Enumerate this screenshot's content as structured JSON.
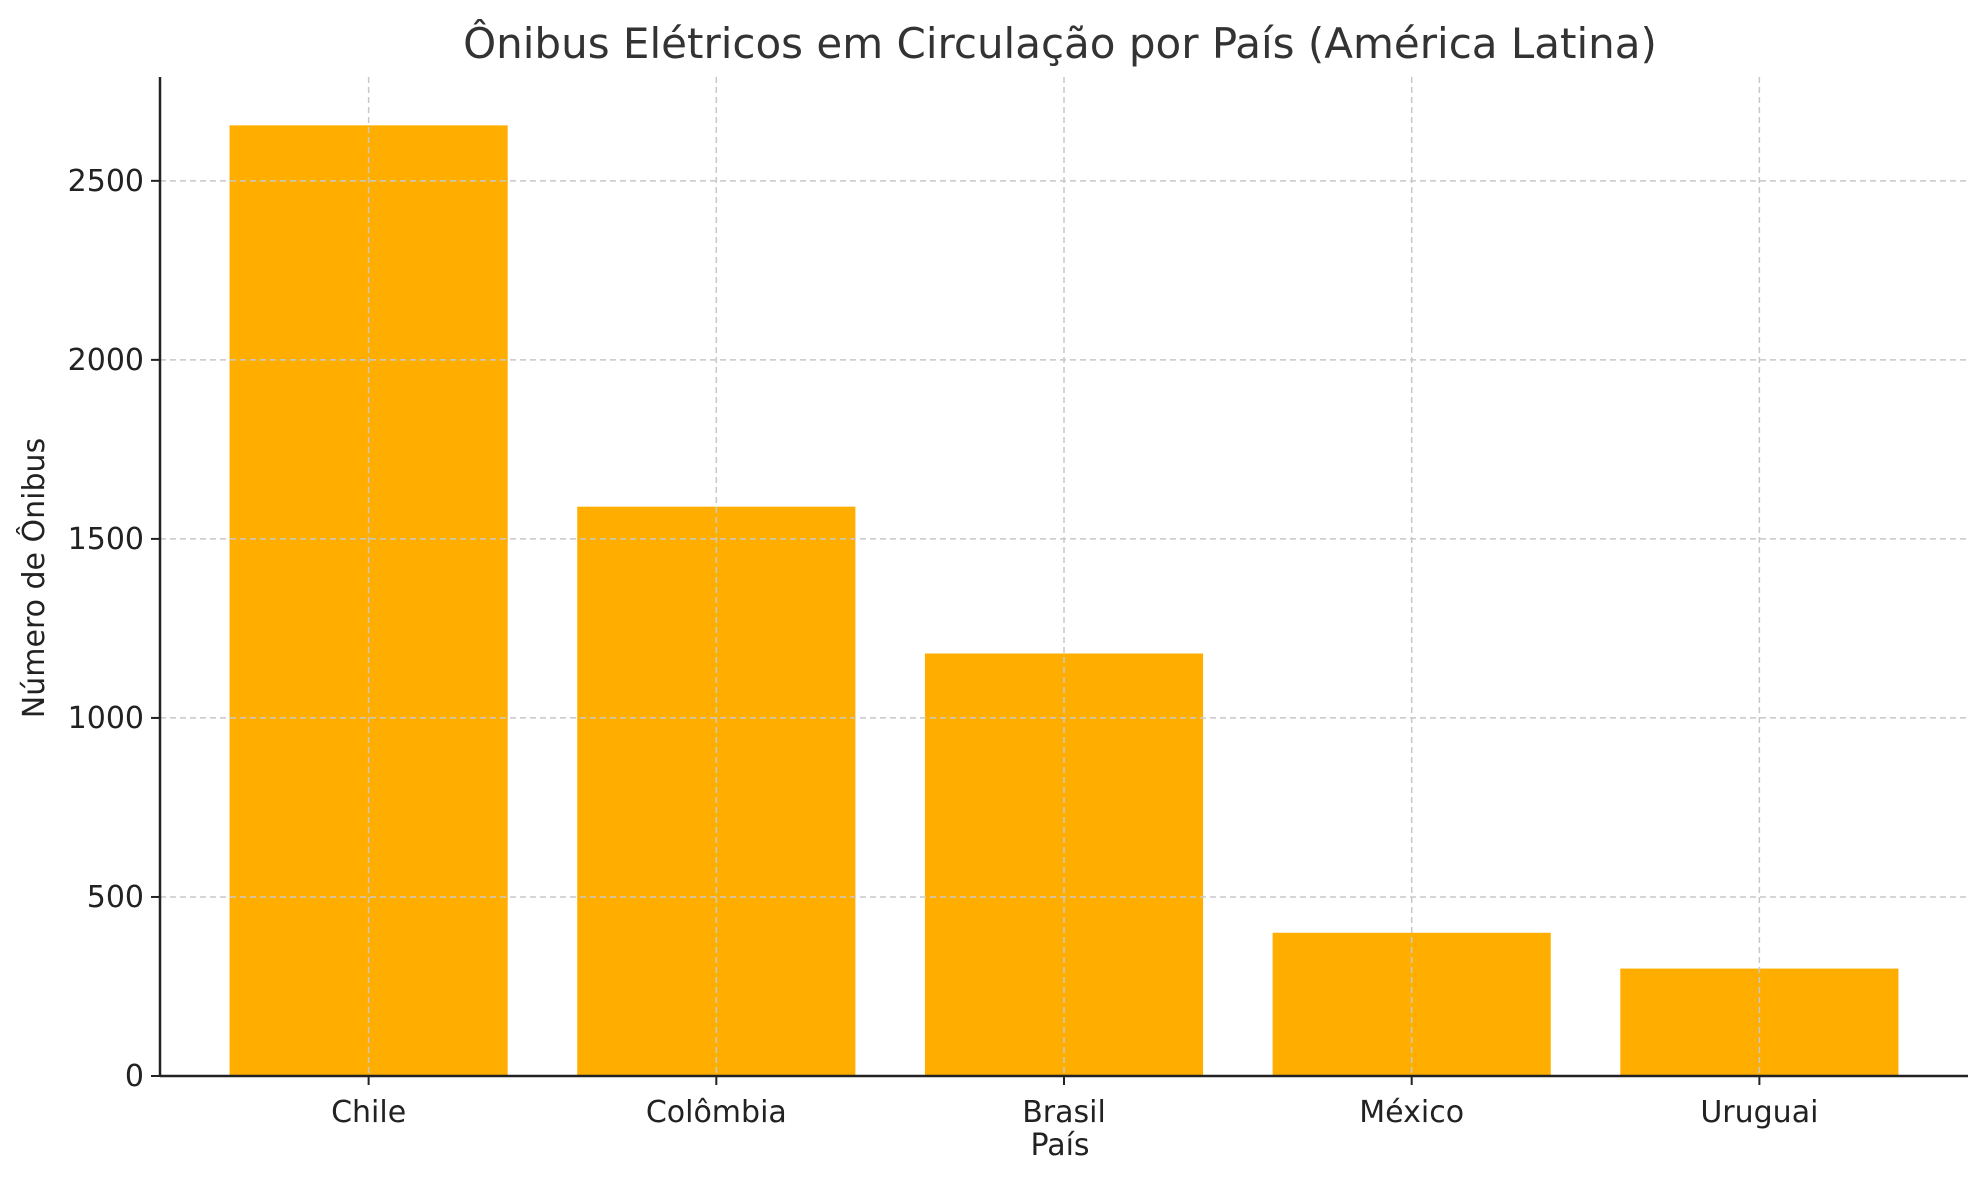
{
  "chart_data": {
    "type": "bar",
    "title": "Ônibus Elétricos em Circulação por País (América Latina)",
    "xlabel": "País",
    "ylabel": "Número de Ônibus",
    "categories": [
      "Chile",
      "Colômbia",
      "Brasil",
      "México",
      "Uruguai"
    ],
    "values": [
      2655,
      1590,
      1180,
      400,
      300
    ],
    "ylim": [
      0,
      2790
    ],
    "yticks": [
      0,
      500,
      1000,
      1500,
      2000,
      2500
    ],
    "grid": true,
    "bar_color": "#FFAE00"
  }
}
